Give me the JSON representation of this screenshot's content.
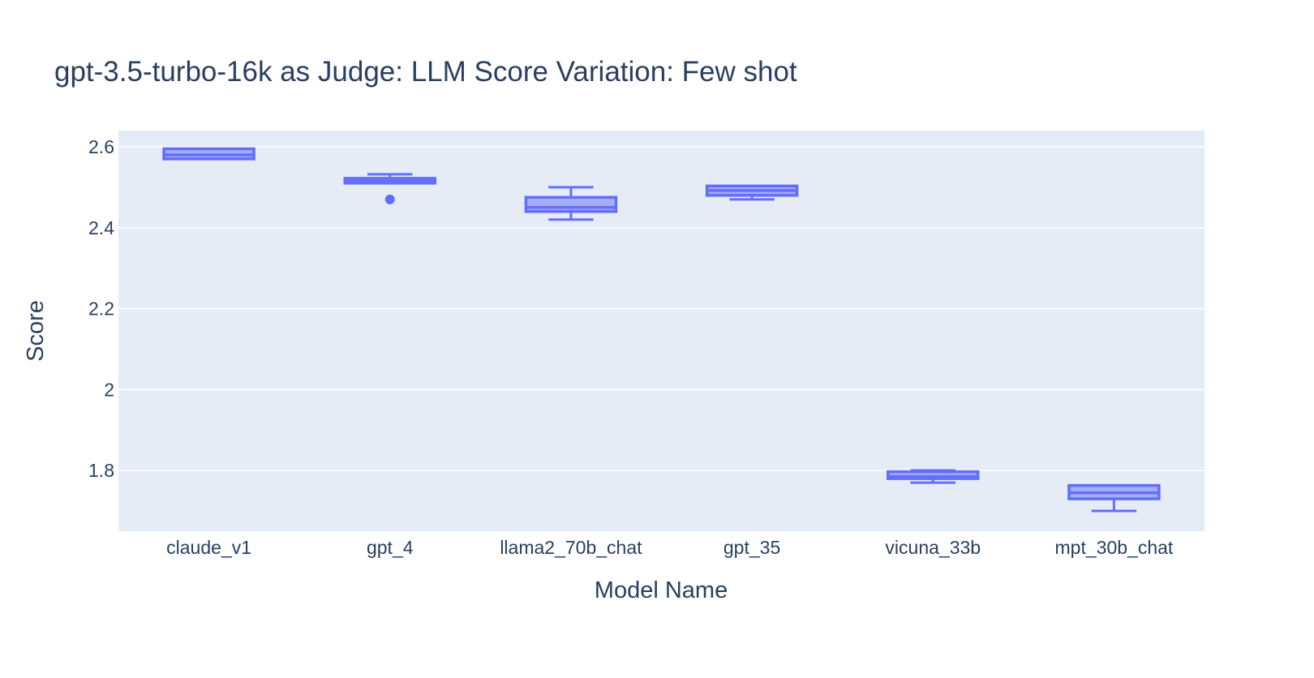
{
  "chart_data": {
    "type": "box",
    "title": "gpt-3.5-turbo-16k as Judge: LLM Score Variation: Few shot",
    "xlabel": "Model Name",
    "ylabel": "Score",
    "ylim": [
      1.65,
      2.64
    ],
    "yticks": [
      1.8,
      2,
      2.2,
      2.4,
      2.6
    ],
    "ytick_labels": [
      "1.8",
      "2",
      "2.2",
      "2.4",
      "2.6"
    ],
    "grid": true,
    "legend": "none",
    "colors": {
      "box": "#636efa",
      "plot_bg": "#e5ecf6",
      "text": "#2a3f5f",
      "grid": "#ffffff"
    },
    "categories": [
      "claude_v1",
      "gpt_4",
      "llama2_70b_chat",
      "gpt_35",
      "vicuna_33b",
      "mpt_30b_chat"
    ],
    "boxes": [
      {
        "name": "claude_v1",
        "lower_whisker": 2.57,
        "q1": 2.57,
        "median": 2.58,
        "q3": 2.595,
        "upper_whisker": 2.595,
        "outliers": []
      },
      {
        "name": "gpt_4",
        "lower_whisker": 2.51,
        "q1": 2.51,
        "median": 2.515,
        "q3": 2.522,
        "upper_whisker": 2.532,
        "outliers": [
          2.47
        ]
      },
      {
        "name": "llama2_70b_chat",
        "lower_whisker": 2.42,
        "q1": 2.44,
        "median": 2.45,
        "q3": 2.475,
        "upper_whisker": 2.5,
        "outliers": []
      },
      {
        "name": "gpt_35",
        "lower_whisker": 2.47,
        "q1": 2.48,
        "median": 2.492,
        "q3": 2.503,
        "upper_whisker": 2.503,
        "outliers": []
      },
      {
        "name": "vicuna_33b",
        "lower_whisker": 1.77,
        "q1": 1.78,
        "median": 1.785,
        "q3": 1.797,
        "upper_whisker": 1.8,
        "outliers": []
      },
      {
        "name": "mpt_30b_chat",
        "lower_whisker": 1.7,
        "q1": 1.73,
        "median": 1.745,
        "q3": 1.763,
        "upper_whisker": 1.763,
        "outliers": []
      }
    ]
  }
}
